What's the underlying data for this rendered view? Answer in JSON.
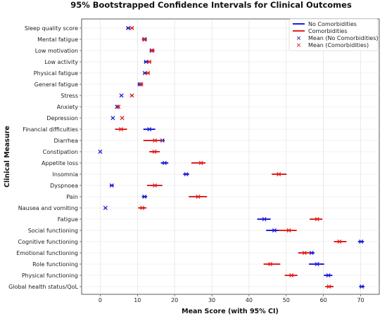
{
  "chart_data": {
    "type": "scatter",
    "title": "95% Bootstrapped Confidence Intervals for Clinical Outcomes",
    "xlabel": "Mean Score (with 95% CI)",
    "ylabel": "Clinical Measure",
    "xlim": [
      -5,
      75
    ],
    "xticks": [
      "0",
      "10",
      "20",
      "30",
      "40",
      "50",
      "60",
      "70"
    ],
    "grid": true,
    "legend_position": "top-right",
    "categories": [
      "Sleep quality score",
      "Mental fatigue",
      "Low motivation",
      "Low activity",
      "Physical fatigue",
      "General fatigue",
      "Stress",
      "Anxiety",
      "Depression",
      "Financial difficulties",
      "Diarrhea",
      "Constipation",
      "Appetite loss",
      "Insomnia",
      "Dyspnoea",
      "Pain",
      "Nausea and vomiting",
      "Fatigue",
      "Social functioning",
      "Cognitive functioning",
      "Emotional functioning",
      "Role functioning",
      "Physical functioning",
      "Global health status/QoL"
    ],
    "legend": {
      "no_comorb_ci": "No Comorbidities",
      "comorb_ci": "Comorbidities",
      "no_comorb_mean": "Mean (No Comorbidities)",
      "comorb_mean": "Mean (Comorbidities)"
    },
    "series": [
      {
        "key": "no_comorb",
        "color": "#1f1fd6",
        "mean": [
          7.5,
          12.0,
          13.8,
          12.3,
          12.0,
          10.6,
          5.7,
          4.5,
          3.4,
          13.2,
          16.7,
          0.0,
          17.3,
          23.1,
          3.1,
          11.9,
          1.4,
          44.1,
          46.8,
          70.1,
          56.8,
          58.3,
          61.3,
          70.3
        ],
        "ci_low": [
          7.1,
          11.5,
          13.3,
          11.8,
          11.6,
          10.1,
          5.5,
          4.3,
          3.2,
          11.6,
          16.1,
          0.0,
          16.3,
          22.3,
          2.6,
          11.2,
          1.2,
          42.2,
          44.6,
          69.3,
          55.9,
          56.1,
          60.1,
          69.6
        ],
        "ci_high": [
          8.0,
          12.5,
          14.3,
          12.8,
          12.4,
          11.1,
          5.9,
          4.7,
          3.6,
          14.8,
          17.3,
          0.1,
          18.3,
          23.9,
          3.6,
          12.6,
          1.6,
          45.8,
          48.6,
          70.9,
          57.6,
          60.2,
          62.4,
          71.0
        ]
      },
      {
        "key": "comorb",
        "color": "#e02020",
        "mean": [
          8.5,
          11.8,
          14.0,
          13.2,
          12.8,
          11.0,
          8.5,
          4.9,
          5.9,
          5.6,
          14.7,
          14.6,
          27.1,
          48.0,
          14.7,
          26.3,
          11.3,
          58.3,
          50.7,
          64.3,
          54.9,
          45.7,
          51.4,
          61.5
        ],
        "ci_low": [
          8.2,
          11.2,
          13.4,
          12.7,
          12.3,
          10.6,
          8.2,
          4.6,
          5.7,
          4.0,
          11.6,
          13.2,
          24.5,
          46.1,
          12.6,
          23.8,
          10.2,
          56.3,
          47.9,
          62.8,
          53.2,
          43.9,
          49.6,
          60.5
        ],
        "ci_high": [
          8.9,
          12.3,
          14.6,
          13.7,
          13.3,
          11.5,
          8.8,
          5.2,
          6.1,
          7.2,
          16.9,
          16.0,
          28.3,
          50.1,
          16.7,
          28.7,
          12.4,
          59.7,
          52.8,
          66.2,
          56.4,
          48.4,
          53.0,
          62.7
        ]
      }
    ]
  }
}
